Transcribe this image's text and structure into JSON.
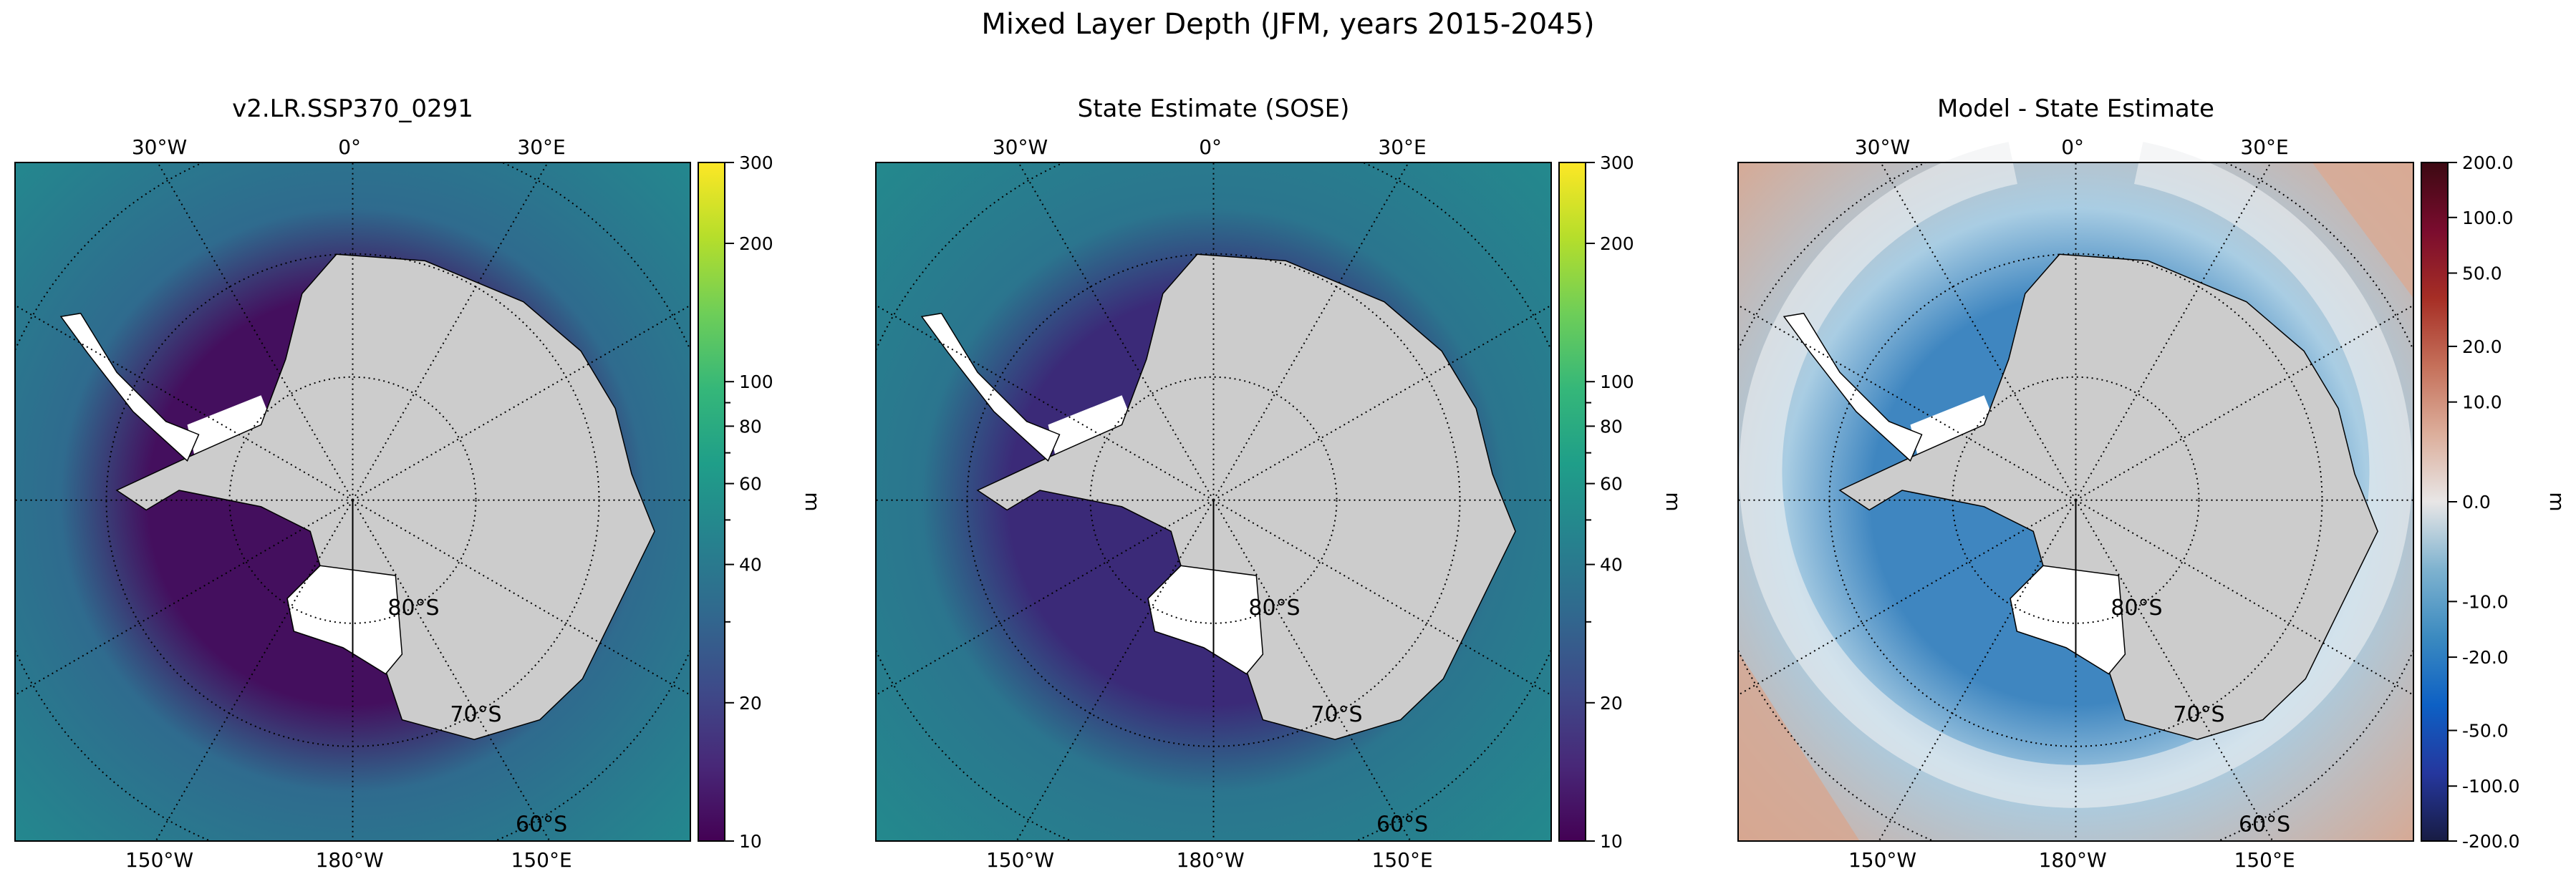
{
  "chart_data": {
    "type": "heatmap",
    "title": "Mixed Layer Depth (JFM, years 2015-2045)",
    "projection": "south-polar-stereographic",
    "panels": [
      {
        "title": "v2.LR.SSP370_0291",
        "colormap": "viridis",
        "scale": "log",
        "clim": [
          10,
          300
        ],
        "colorbar_label": "m",
        "colorbar_ticks": [
          "10",
          "20",
          "40",
          "60",
          "80",
          "100",
          "200",
          "300"
        ],
        "colorbar_minor_ticks": [
          30,
          50,
          70,
          90
        ],
        "colors": {
          "edge": "#23898e",
          "mid": "#2f6b8e",
          "coast": "#440f5e"
        }
      },
      {
        "title": "State Estimate (SOSE)",
        "colormap": "viridis",
        "scale": "log",
        "clim": [
          10,
          300
        ],
        "colorbar_label": "m",
        "colorbar_ticks": [
          "10",
          "20",
          "40",
          "60",
          "80",
          "100",
          "200",
          "300"
        ],
        "colorbar_minor_ticks": [
          30,
          50,
          70,
          90
        ],
        "colors": {
          "edge": "#238a8d",
          "mid": "#2b758e",
          "coast": "#3b2a78"
        }
      },
      {
        "title": "Model - State Estimate",
        "colormap": "RdBu_r (balance)",
        "scale": "symlog",
        "clim": [
          -200,
          200
        ],
        "colorbar_label": "m",
        "colorbar_ticks": [
          "200.0",
          "100.0",
          "50.0",
          "20.0",
          "10.0",
          "0.0",
          "-10.0",
          "-20.0",
          "-50.0",
          "-100.0",
          "-200.0"
        ],
        "colors": {
          "edge": "#d8a892",
          "mid": "#a9cde3",
          "coast": "#3f86c0"
        }
      }
    ],
    "lon_labels_top": [
      "30°W",
      "0°",
      "30°E"
    ],
    "lon_labels_bottom": [
      "150°W",
      "180°W",
      "150°E"
    ],
    "lat_labels": [
      "80°S",
      "70°S",
      "60°S"
    ],
    "land_color": "#cccccc",
    "ice_shelf_color": "#ffffff"
  }
}
